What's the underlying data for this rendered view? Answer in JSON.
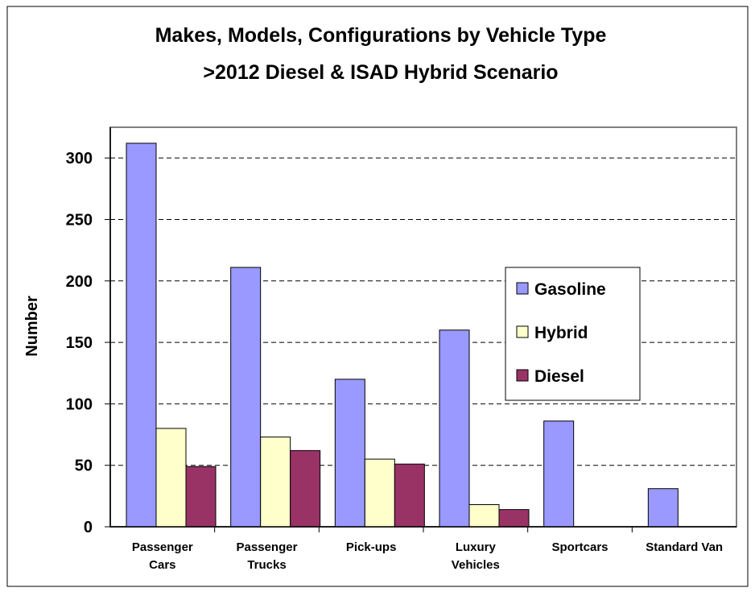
{
  "chart_data": {
    "type": "bar",
    "title": [
      "Makes, Models, Configurations by Vehicle Type",
      ">2012 Diesel & ISAD Hybrid Scenario"
    ],
    "y_label": "Number",
    "categories": [
      [
        "Passenger",
        "Cars"
      ],
      [
        "Passenger",
        "Trucks"
      ],
      [
        "Pick-ups"
      ],
      [
        "Luxury",
        "Vehicles"
      ],
      [
        "Sportcars"
      ],
      [
        "Standard Van"
      ]
    ],
    "series": [
      {
        "name": "Gasoline",
        "color": "#9999ff",
        "values": [
          312,
          211,
          120,
          160,
          86,
          31
        ]
      },
      {
        "name": "Hybrid",
        "color": "#ffffcc",
        "values": [
          80,
          73,
          55,
          18,
          0,
          0
        ]
      },
      {
        "name": "Diesel",
        "color": "#993366",
        "values": [
          49,
          62,
          51,
          14,
          0,
          0
        ]
      }
    ],
    "ylim": [
      0,
      325
    ],
    "yticks": [
      0,
      50,
      100,
      150,
      200,
      250,
      300
    ],
    "grid": true,
    "legend": "right"
  }
}
